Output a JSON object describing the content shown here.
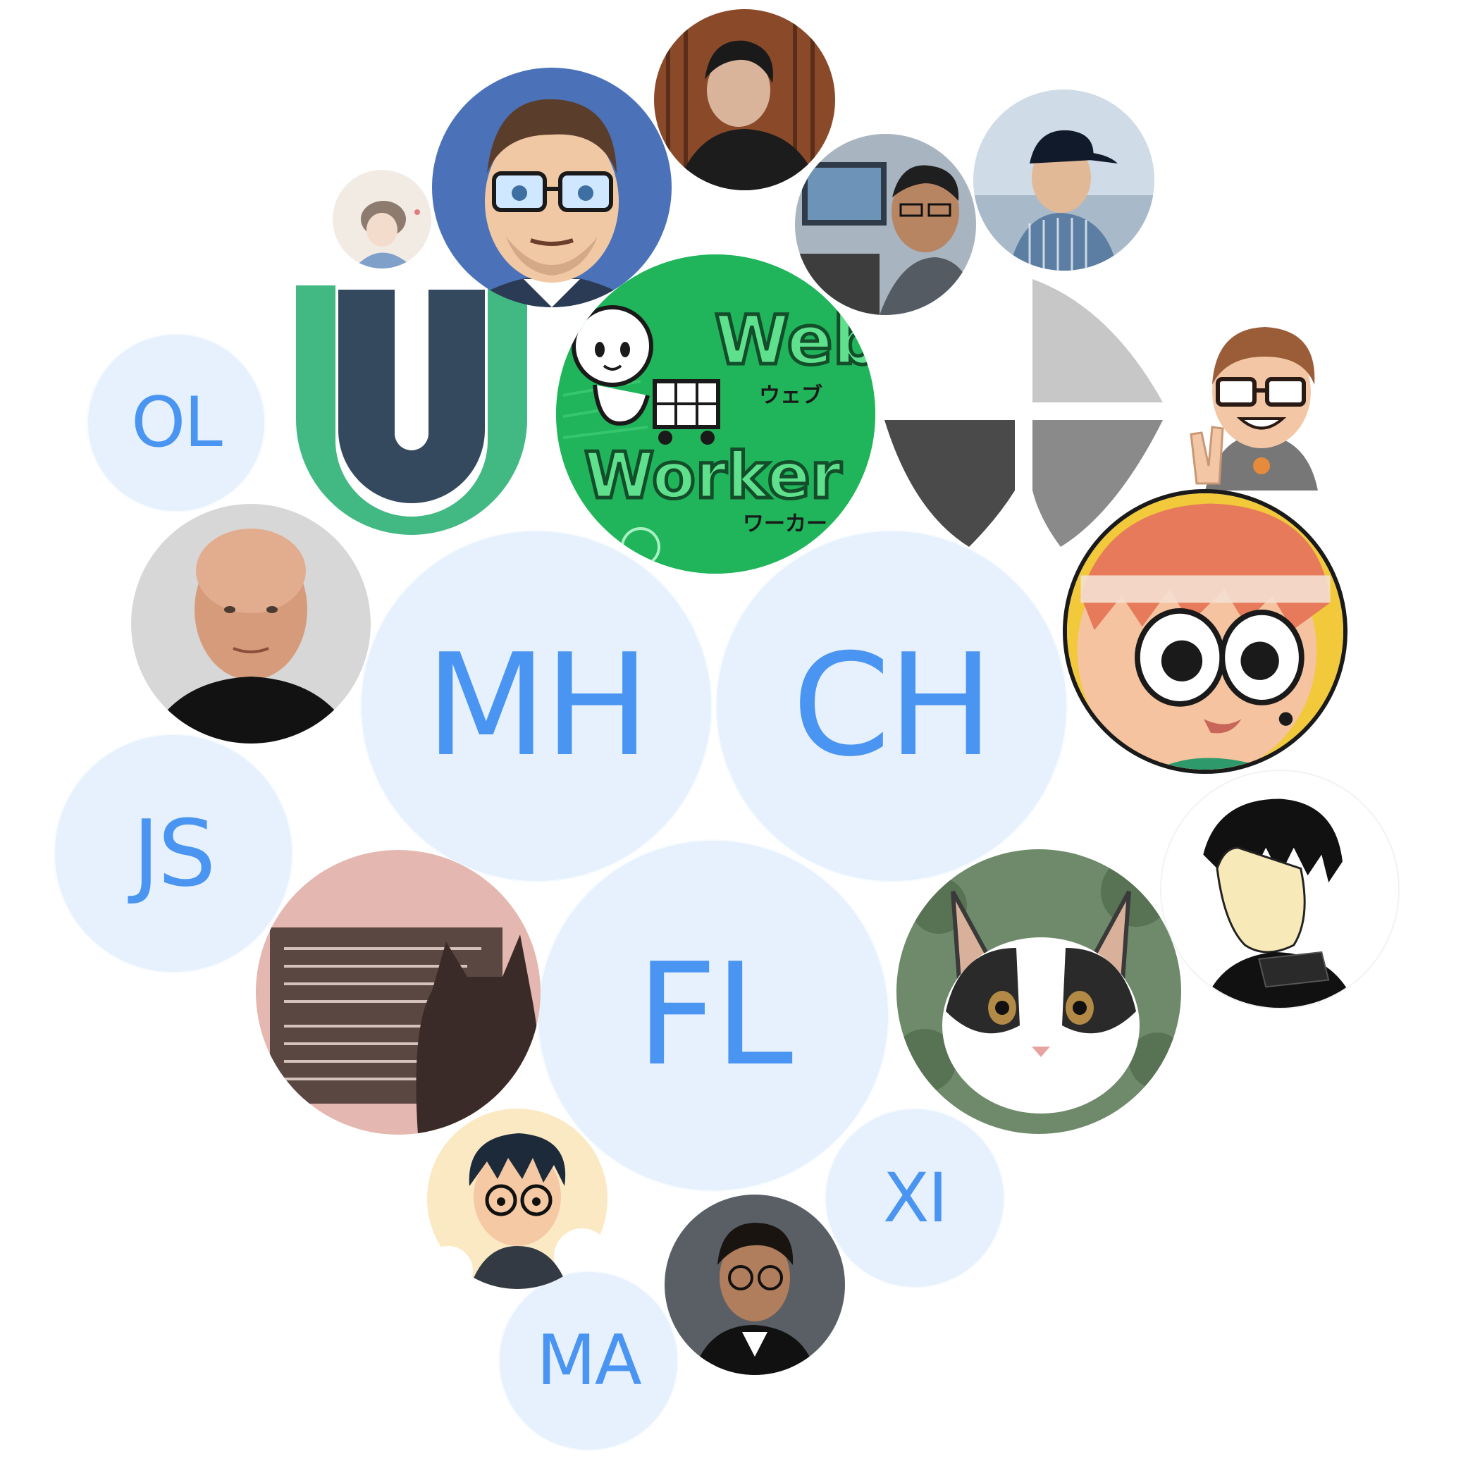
{
  "contributors": {
    "initials": [
      {
        "id": "ol",
        "text": "OL"
      },
      {
        "id": "js",
        "text": "JS"
      },
      {
        "id": "mh",
        "text": "MH"
      },
      {
        "id": "ch",
        "text": "CH"
      },
      {
        "id": "fl",
        "text": "FL"
      },
      {
        "id": "xi",
        "text": "XI"
      },
      {
        "id": "ma",
        "text": "MA"
      }
    ],
    "logos": {
      "webworker": {
        "line1": "Web",
        "line1_kana": "ウェブ",
        "line2": "Worker",
        "line2_kana": "ワーカー"
      },
      "u_logo": {
        "letter": "U"
      }
    }
  },
  "colors": {
    "initials_bg": "#e6f1fd",
    "initials_text": "#4a94f2",
    "webworker_green": "#1db954",
    "u_dark": "#34495e",
    "u_green": "#42b983"
  },
  "icons": [
    "u-logo-icon",
    "webworker-logo-icon",
    "gray-shapes-logo-icon",
    "avatar-illustration-icon",
    "avatar-photo-icon",
    "cat-photo-icon"
  ]
}
